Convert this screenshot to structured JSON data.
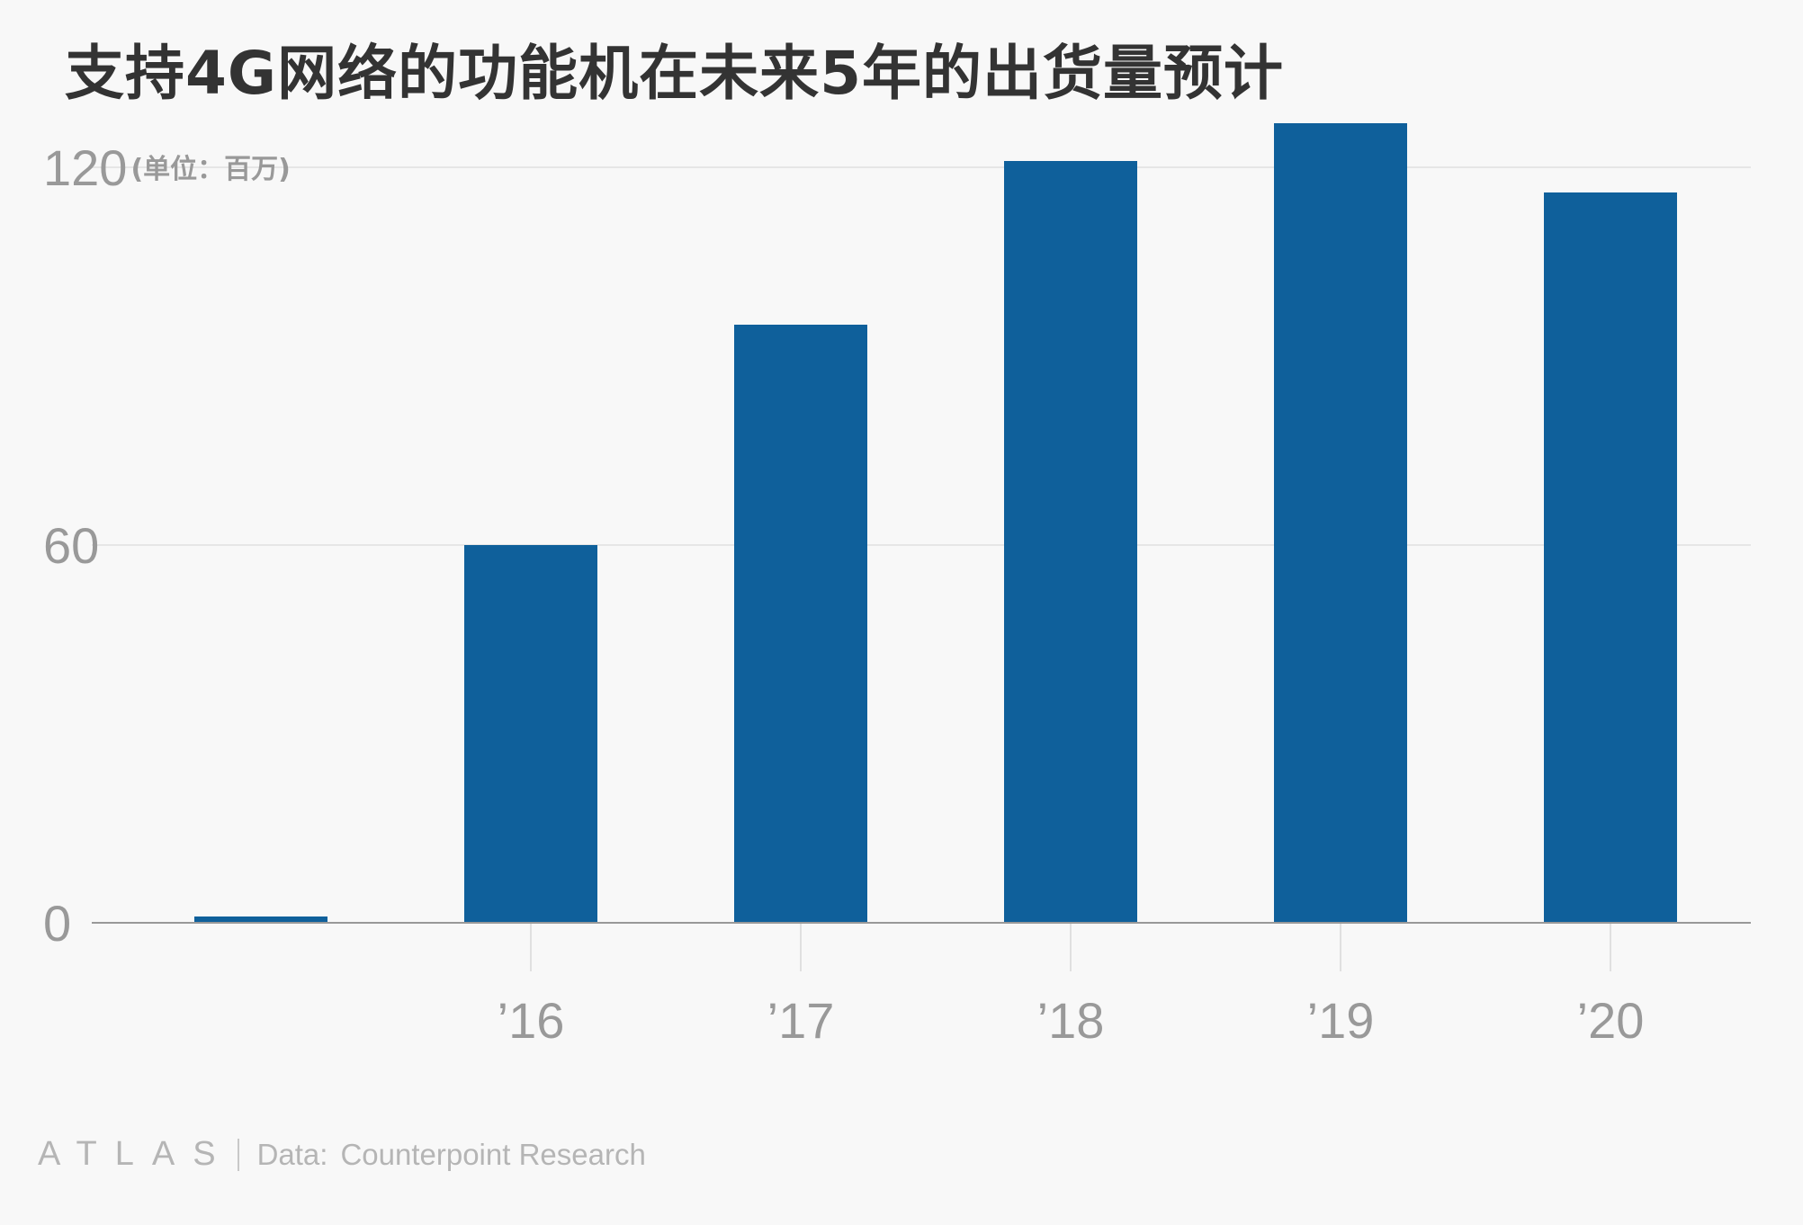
{
  "title": "支持4G网络的功能机在未来5年的出货量预计",
  "unit_label": "(单位：百万)",
  "footer": {
    "logo": "ATLAS",
    "source_label": "Data:",
    "source_value": "Counterpoint Research"
  },
  "colors": {
    "bar": "#0f609b",
    "axis": "#999999",
    "grid": "#e6e6e6",
    "background": "#f8f8f8"
  },
  "chart_data": {
    "type": "bar",
    "categories": [
      "",
      "’16",
      "’17",
      "’18",
      "’19",
      "’20"
    ],
    "values": [
      1,
      60,
      95,
      121,
      127,
      116
    ],
    "ylim": [
      0,
      127
    ],
    "yticks": [
      0,
      60,
      120
    ],
    "ytick_labels": [
      "0",
      "60",
      "120"
    ],
    "grid": true,
    "xlabel": "",
    "ylabel": ""
  }
}
